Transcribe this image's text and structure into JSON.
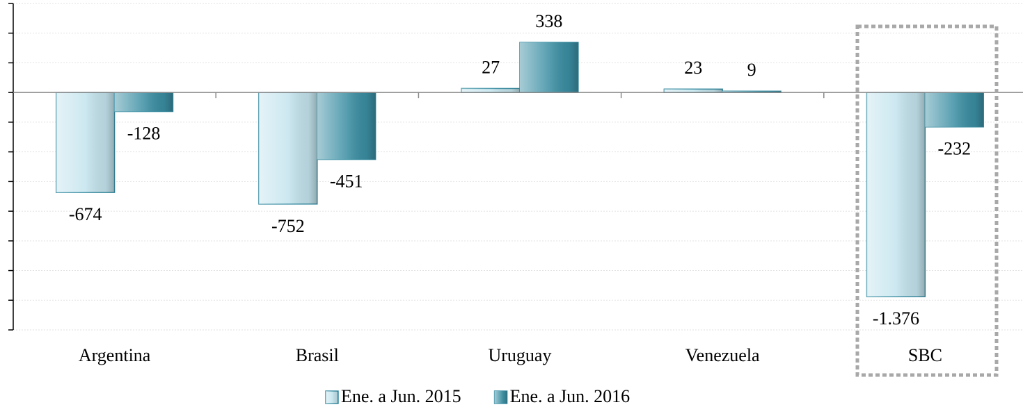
{
  "chart_data": {
    "type": "bar",
    "categories": [
      "Argentina",
      "Brasil",
      "Uruguay",
      "Venezuela",
      "SBC"
    ],
    "series": [
      {
        "name": "Ene. a Jun. 2015",
        "color": "#c4e4ee",
        "values": [
          -674,
          -752,
          27,
          23,
          -1376
        ],
        "value_labels": [
          "-674",
          "-752",
          "27",
          "23",
          "-1.376"
        ]
      },
      {
        "name": "Ene. a Jun. 2016",
        "color": "#3a8ea3",
        "values": [
          -128,
          -451,
          338,
          9,
          -232
        ]
      }
    ],
    "ylim": [
      -1600,
      600
    ],
    "yticks": [
      -1600,
      -1400,
      -1200,
      -1000,
      -800,
      -600,
      -400,
      -200,
      0,
      200,
      400,
      600
    ],
    "grid": true,
    "legend": "bottom"
  }
}
